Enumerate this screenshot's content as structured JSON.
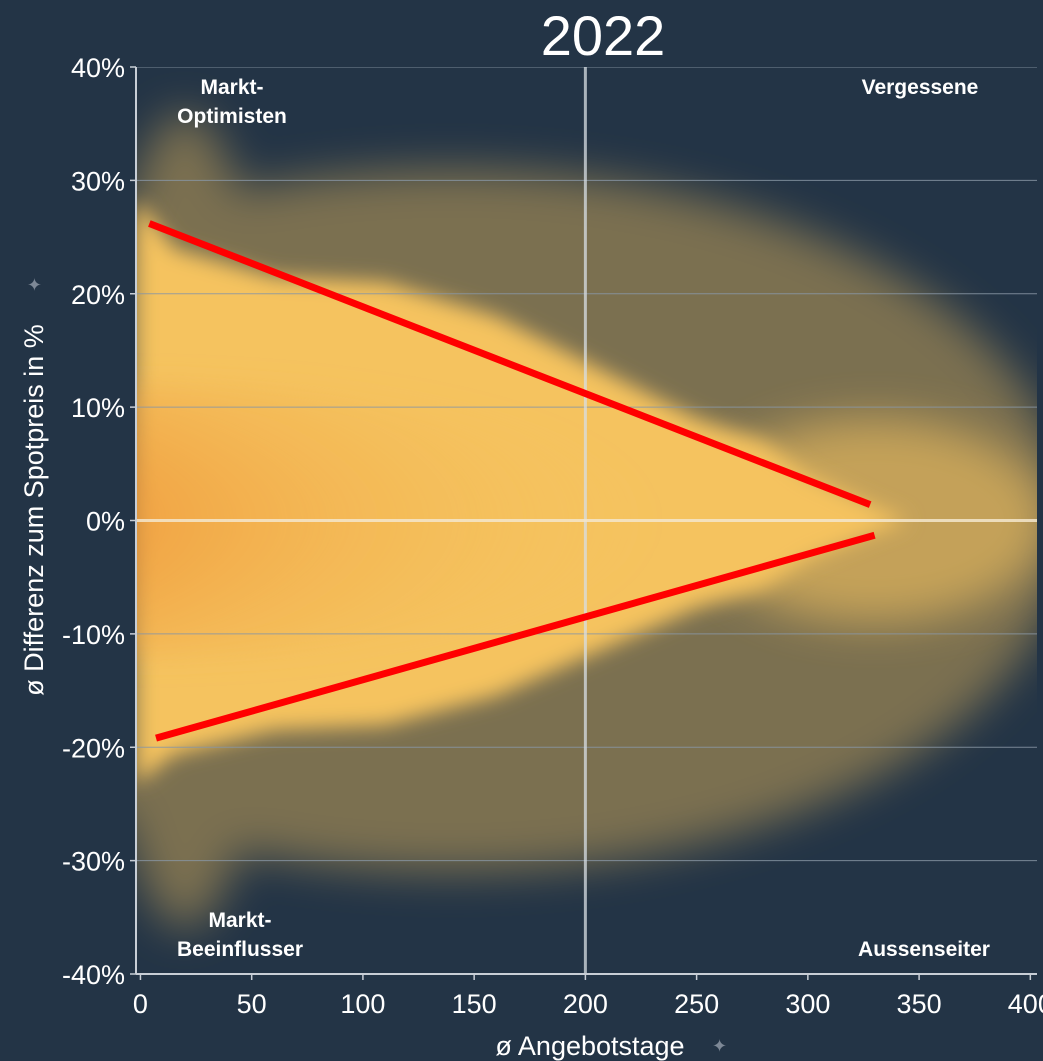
{
  "chart_data": {
    "type": "heatmap",
    "title": "2022",
    "xlabel": "ø Angebotstage",
    "ylabel": "ø Differenz zum Spotpreis in %",
    "xlim": [
      -2,
      403
    ],
    "ylim": [
      -40,
      40
    ],
    "x_ticks": [
      {
        "value": 0,
        "label": "0"
      },
      {
        "value": 50,
        "label": "50"
      },
      {
        "value": 100,
        "label": "100"
      },
      {
        "value": 150,
        "label": "150"
      },
      {
        "value": 200,
        "label": "200"
      },
      {
        "value": 250,
        "label": "250"
      },
      {
        "value": 300,
        "label": "300"
      },
      {
        "value": 350,
        "label": "350"
      },
      {
        "value": 400,
        "label": "400"
      }
    ],
    "y_ticks": [
      {
        "value": 40,
        "label": "40%"
      },
      {
        "value": 30,
        "label": "30%"
      },
      {
        "value": 20,
        "label": "20%"
      },
      {
        "value": 10,
        "label": "10%"
      },
      {
        "value": 0,
        "label": "0%"
      },
      {
        "value": -10,
        "label": "-10%"
      },
      {
        "value": -20,
        "label": "-20%"
      },
      {
        "value": -30,
        "label": "-30%"
      },
      {
        "value": -40,
        "label": "-40%"
      }
    ],
    "reference_lines": {
      "x": 200,
      "y": 0
    },
    "quadrant_labels": {
      "top_left": [
        "Markt-",
        "Optimisten"
      ],
      "top_right": [
        "Vergessene"
      ],
      "bottom_left": [
        "Markt-",
        "Beeinflusser"
      ],
      "bottom_right": [
        "Aussenseiter"
      ]
    },
    "trend_lines": [
      {
        "x": [
          4,
          328
        ],
        "y": [
          26.2,
          1.4
        ]
      },
      {
        "x": [
          7,
          330
        ],
        "y": [
          -19.2,
          -1.3
        ]
      }
    ],
    "colors": {
      "background": "#233446",
      "density_low": "#f5c35e",
      "density_mid": "#ee8a2c",
      "density_high": "#9a2a10",
      "trend_line": "#ff0000",
      "gridline": "#8896a4"
    }
  }
}
